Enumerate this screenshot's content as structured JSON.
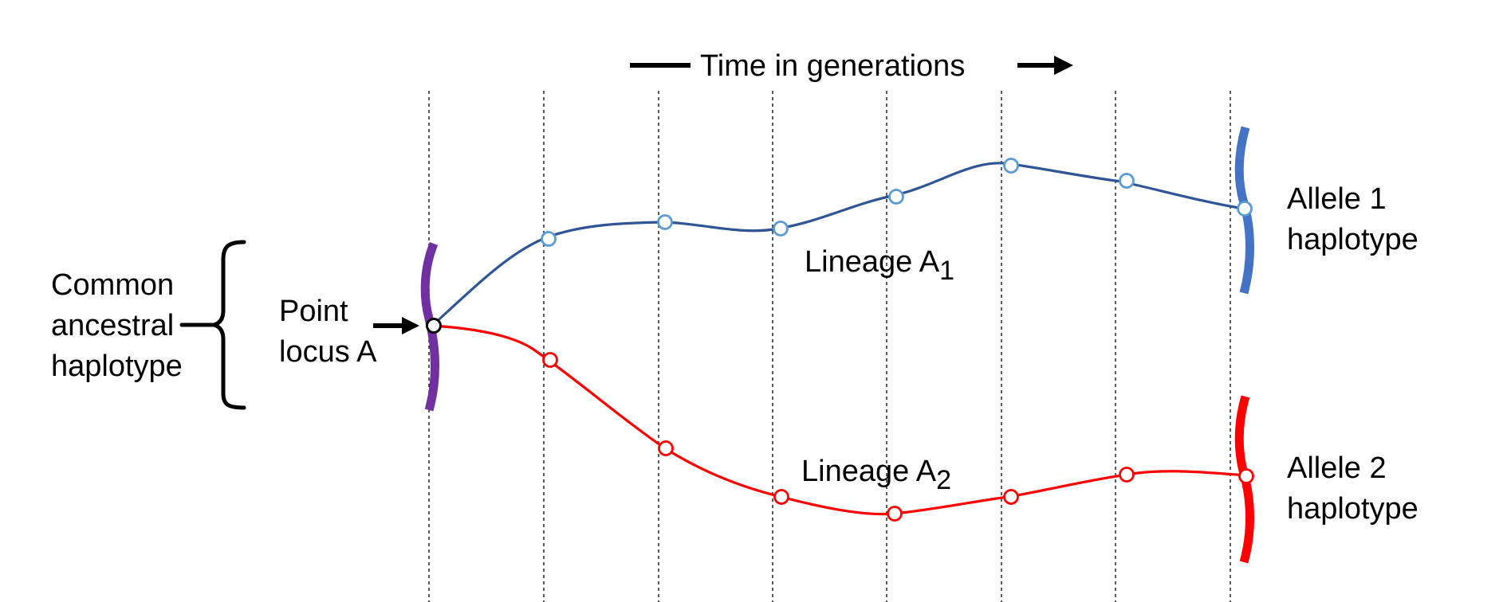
{
  "time_axis": {
    "label": "Time in generations"
  },
  "ancestral": {
    "label_lines": [
      "Common",
      "ancestral",
      "haplotype"
    ],
    "chromosome_color": "#7030a0"
  },
  "locus": {
    "label_lines": [
      "Point",
      "locus A"
    ]
  },
  "lineages": [
    {
      "label": "Lineage A",
      "subscript": "1",
      "color": "#2f5597",
      "node_color": "#5b9bd5"
    },
    {
      "label": "Lineage A",
      "subscript": "2",
      "color": "#ff0000",
      "node_color": "#ff0000"
    }
  ],
  "alleles": [
    {
      "label_lines": [
        "Allele 1",
        "haplotype"
      ],
      "chromosome_color": "#4472c4"
    },
    {
      "label_lines": [
        "Allele 2",
        "haplotype"
      ],
      "chromosome_color": "#ff0000"
    }
  ],
  "generation_count": 8
}
